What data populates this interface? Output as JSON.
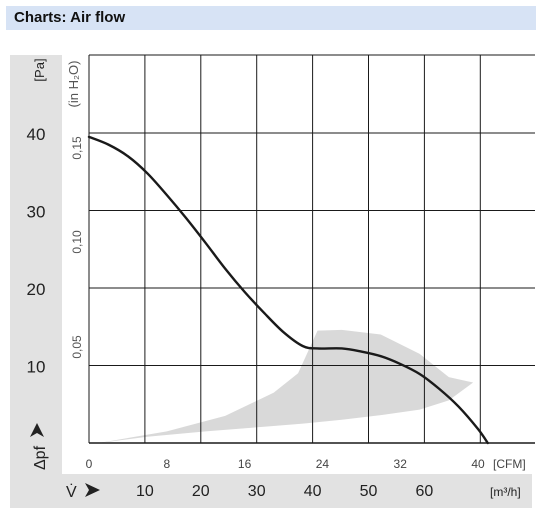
{
  "header": {
    "title": "Charts: Air flow"
  },
  "chart_data": {
    "type": "line",
    "title": "",
    "y_axis_primary": {
      "unit_label": "[Pa]",
      "symbol": "Δpf",
      "ticks": [
        10,
        20,
        30,
        40
      ],
      "range": [
        0,
        40
      ]
    },
    "y_axis_secondary": {
      "unit_label": "(in H₂O)",
      "ticks": [
        "0,05",
        "0,10",
        "0,15"
      ]
    },
    "x_axis_primary": {
      "unit_label": "[CFM]",
      "ticks": [
        0,
        8,
        16,
        24,
        32,
        40
      ],
      "range": [
        0,
        40
      ]
    },
    "x_axis_secondary": {
      "unit_label": "[m³/h]",
      "symbol": "V̇",
      "ticks": [
        10,
        20,
        30,
        40,
        50,
        60
      ]
    },
    "grid": true,
    "series": [
      {
        "x": [
          0,
          2,
          4,
          6,
          8,
          10,
          12,
          14,
          16,
          18,
          20,
          22,
          23.5,
          26,
          28,
          30,
          32,
          34,
          36,
          38,
          40,
          41
        ],
        "y": [
          39.5,
          38.5,
          37,
          34.8,
          32,
          29,
          25.8,
          22.5,
          19.5,
          16.8,
          14.3,
          12.5,
          12.2,
          12.2,
          11.8,
          11.2,
          10.2,
          8.9,
          7,
          4.7,
          1.8,
          0
        ]
      }
    ],
    "operating_band": {
      "upper": {
        "x": [
          1,
          8,
          14,
          19,
          21.5,
          23.5,
          26,
          30,
          34,
          37,
          39.5
        ],
        "y": [
          0,
          1.5,
          3.5,
          6.5,
          9,
          14.5,
          14.6,
          14,
          11.5,
          8.5,
          7.8
        ]
      },
      "lower": {
        "x": [
          39.5,
          37,
          34,
          30,
          26,
          22,
          18,
          12,
          6,
          1
        ],
        "y": [
          7.8,
          5.5,
          4.3,
          3.6,
          3.0,
          2.5,
          2.1,
          1.5,
          0.8,
          0
        ]
      },
      "color": "#d9d9d9"
    },
    "colors": {
      "curve": "#1a1a1a",
      "grid": "#1a1a1a",
      "axis_panel": "#e2e2e2"
    }
  }
}
